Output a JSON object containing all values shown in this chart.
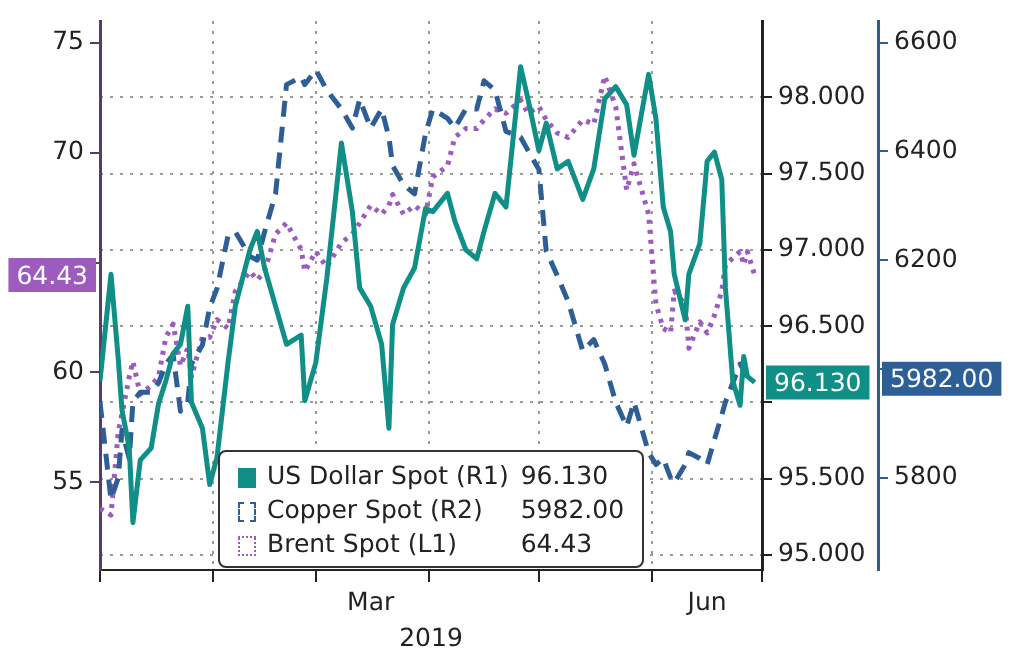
{
  "chart_data": {
    "type": "line",
    "xlabel": "2019",
    "x": [
      "2019-01-01",
      "2019-01-04",
      "2019-01-06",
      "2019-01-07",
      "2019-01-09",
      "2019-01-10",
      "2019-01-12",
      "2019-01-15",
      "2019-01-17",
      "2019-01-19",
      "2019-01-21",
      "2019-01-23",
      "2019-01-25",
      "2019-01-26",
      "2019-01-29",
      "2019-01-31",
      "2019-02-02",
      "2019-02-05",
      "2019-02-07",
      "2019-02-11",
      "2019-02-13",
      "2019-02-15",
      "2019-02-18",
      "2019-02-21",
      "2019-02-25",
      "2019-02-26",
      "2019-03-01",
      "2019-03-04",
      "2019-03-08",
      "2019-03-11",
      "2019-03-13",
      "2019-03-16",
      "2019-03-19",
      "2019-03-21",
      "2019-03-22",
      "2019-03-25",
      "2019-03-28",
      "2019-03-31",
      "2019-04-02",
      "2019-04-06",
      "2019-04-08",
      "2019-04-11",
      "2019-04-14",
      "2019-04-16",
      "2019-04-19",
      "2019-04-22",
      "2019-04-26",
      "2019-04-28",
      "2019-05-01",
      "2019-05-03",
      "2019-05-06",
      "2019-05-09",
      "2019-05-13",
      "2019-05-16",
      "2019-05-19",
      "2019-05-22",
      "2019-05-25",
      "2019-05-27",
      "2019-05-31",
      "2019-06-02",
      "2019-06-04",
      "2019-06-06",
      "2019-06-07",
      "2019-06-10",
      "2019-06-11",
      "2019-06-14",
      "2019-06-16",
      "2019-06-18",
      "2019-06-20",
      "2019-06-21",
      "2019-06-23",
      "2019-06-25",
      "2019-06-26",
      "2019-06-27",
      "2019-06-29"
    ],
    "series": [
      {
        "name": "US Dollar Spot (R1)",
        "color": "#0f8f86",
        "axis": "y2",
        "line_style": "solid",
        "values": [
          96.14,
          96.84,
          96.28,
          95.95,
          95.7,
          95.21,
          95.62,
          95.7,
          95.99,
          96.14,
          96.32,
          96.38,
          96.63,
          96.0,
          95.83,
          95.46,
          95.64,
          96.26,
          96.63,
          97.0,
          97.12,
          96.88,
          96.63,
          96.38,
          96.44,
          96.01,
          96.26,
          96.81,
          97.7,
          97.25,
          96.75,
          96.63,
          96.38,
          95.83,
          96.51,
          96.75,
          96.88,
          97.27,
          97.25,
          97.37,
          97.19,
          97.0,
          96.94,
          97.12,
          97.37,
          97.28,
          98.2,
          97.99,
          97.65,
          97.83,
          97.53,
          97.58,
          97.33,
          97.53,
          97.99,
          98.07,
          97.95,
          97.62,
          98.15,
          97.86,
          97.28,
          97.12,
          96.84,
          96.54,
          96.84,
          97.04,
          97.58,
          97.64,
          97.46,
          96.75,
          96.14,
          95.98,
          96.3,
          96.17,
          96.13
        ]
      },
      {
        "name": "Copper Spot (R2)",
        "color": "#2d5f96",
        "axis": "y3",
        "line_style": "dashed",
        "values": [
          5939,
          5760,
          5800,
          5887,
          5835,
          5939,
          5957,
          5957,
          5974,
          6009,
          6026,
          5922,
          5939,
          6009,
          6044,
          6113,
          6148,
          6245,
          6252,
          6207,
          6200,
          6252,
          6322,
          6523,
          6537,
          6523,
          6550,
          6513,
          6478,
          6443,
          6496,
          6443,
          6478,
          6426,
          6374,
          6339,
          6322,
          6433,
          6478,
          6461,
          6443,
          6478,
          6478,
          6530,
          6513,
          6437,
          6426,
          6402,
          6367,
          6217,
          6172,
          6124,
          6033,
          6054,
          6009,
          5939,
          5894,
          5939,
          5846,
          5824,
          5835,
          5800,
          5790,
          5824,
          5846,
          5835,
          5824,
          5870,
          5915,
          5939,
          5974,
          6009,
          5998,
          5984,
          5982
        ]
      },
      {
        "name": "Brent Spot (L1)",
        "color": "#9c5bbd",
        "axis": "y",
        "line_style": "dotted",
        "values": [
          53.8,
          53.5,
          57.3,
          58.1,
          59.8,
          60.5,
          59.0,
          59.4,
          59.8,
          61.6,
          62.2,
          60.3,
          61.1,
          59.8,
          61.6,
          61.6,
          62.4,
          62.0,
          63.7,
          64.6,
          64.2,
          64.6,
          66.3,
          66.8,
          65.6,
          64.6,
          65.5,
          64.8,
          65.9,
          66.3,
          66.8,
          67.6,
          67.2,
          67.6,
          68.1,
          67.2,
          67.6,
          67.2,
          68.9,
          69.4,
          70.7,
          71.1,
          71.1,
          71.5,
          72.0,
          71.8,
          72.4,
          71.8,
          72.1,
          71.5,
          70.9,
          70.7,
          71.5,
          71.3,
          73.5,
          72.1,
          68.3,
          69.5,
          67.2,
          63.1,
          62.0,
          61.8,
          63.7,
          63.1,
          61.1,
          62.3,
          61.8,
          62.6,
          63.7,
          64.9,
          65.2,
          65.5,
          64.9,
          65.5,
          64.43
        ]
      }
    ],
    "xlim": [
      "2019-01-01",
      "2019-07-01"
    ],
    "xticks": [
      {
        "value": "2019-01-01",
        "label": null
      },
      {
        "value": "2019-02-01",
        "label": null
      },
      {
        "value": "2019-03-01",
        "label": null
      },
      {
        "value": "2019-03-16",
        "label": "Mar"
      },
      {
        "value": "2019-04-01",
        "label": null
      },
      {
        "value": "2019-05-01",
        "label": null
      },
      {
        "value": "2019-06-01",
        "label": null
      },
      {
        "value": "2019-06-16",
        "label": "Jun"
      },
      {
        "value": "2019-07-01",
        "label": null
      }
    ],
    "ylim": [
      51,
      76
    ],
    "yticks": [
      55,
      60,
      {
        "value": 65,
        "label": null
      },
      70,
      75
    ],
    "y2lim": [
      94.9,
      98.5
    ],
    "y2ticks": [
      {
        "value": 95,
        "label": "95.000"
      },
      {
        "value": 95.5,
        "label": "95.500"
      },
      {
        "value": 96,
        "label": null
      },
      {
        "value": 96.5,
        "label": "96.500"
      },
      {
        "value": 97,
        "label": "97.000"
      },
      {
        "value": 97.5,
        "label": "97.500"
      },
      {
        "value": 98,
        "label": "98.000"
      }
    ],
    "y3lim": [
      5630,
      6640
    ],
    "y3ticks": [
      5800,
      {
        "value": 6000,
        "label": null
      },
      6200,
      6400,
      6600
    ],
    "annotations": [
      "96.130",
      "5982.00",
      "64.43"
    ],
    "grid": true,
    "legend": "bottom",
    "marker": "none"
  }
}
